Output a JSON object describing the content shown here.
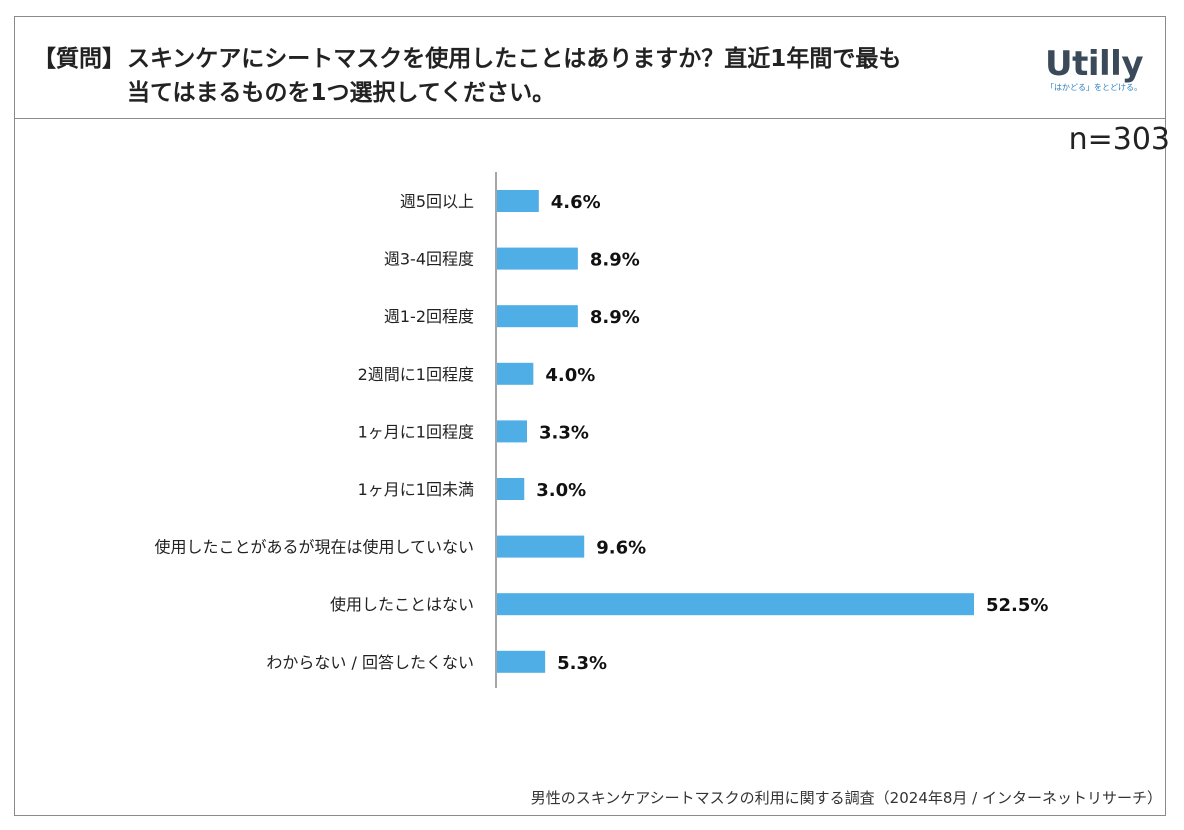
{
  "header": {
    "tag": "【質問】",
    "question_line1": "スキンケアにシートマスクを使用したことはありますか？直近1年間で最も",
    "question_line2": "当てはまるものを1つ選択してください。"
  },
  "logo": {
    "word": "Utilly",
    "tagline": "「はかどる」をとどける。"
  },
  "sample": "n=303",
  "footer": "男性のスキンケアシートマスクの利用に関する調査（2024年8月 / インターネットリサーチ）",
  "colors": {
    "bar": "#4faee6",
    "axis": "#888888",
    "border": "#8a8a8a"
  },
  "chart_data": {
    "type": "bar",
    "orientation": "horizontal",
    "categories": [
      "週5回以上",
      "週3-4回程度",
      "週1-2回程度",
      "2週間に1回程度",
      "1ヶ月に1回程度",
      "1ヶ月に1回未満",
      "使用したことがあるが現在は使用していない",
      "使用したことはない",
      "わからない / 回答したくない"
    ],
    "values": [
      4.6,
      8.9,
      8.9,
      4.0,
      3.3,
      3.0,
      9.6,
      52.5,
      5.3
    ],
    "value_labels": [
      "4.6%",
      "8.9%",
      "8.9%",
      "4.0%",
      "3.3%",
      "3.0%",
      "9.6%",
      "52.5%",
      "5.3%"
    ],
    "unit": "%",
    "xlim": [
      0,
      52.5
    ]
  }
}
